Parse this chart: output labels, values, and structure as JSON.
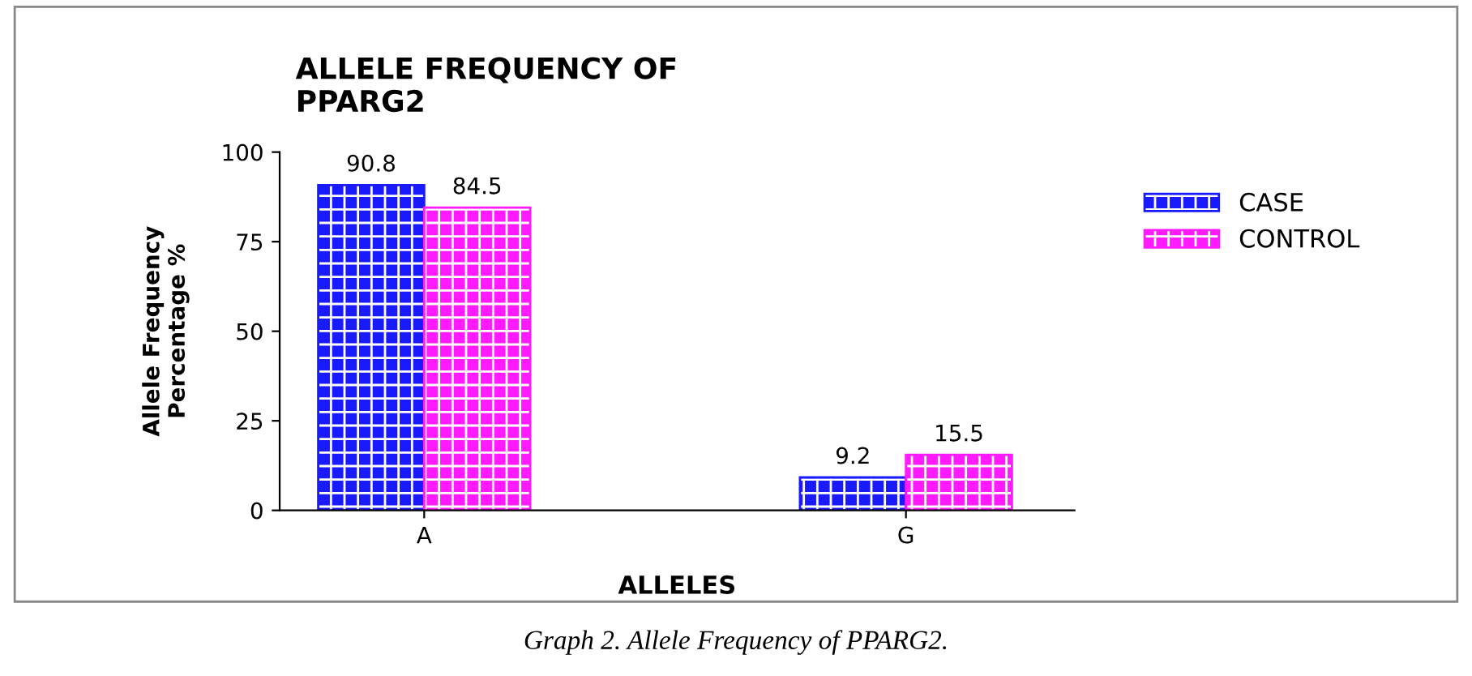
{
  "chart_data": {
    "type": "bar",
    "title": "ALLELE FREQUENCY OF\nPPARG2",
    "xlabel": "ALLELES",
    "ylabel": "Allele Frequency\nPercentage %",
    "categories": [
      "A",
      "G"
    ],
    "series": [
      {
        "name": "CASE",
        "color": "#1a1aff",
        "values": [
          90.8,
          9.2
        ]
      },
      {
        "name": "CONTROL",
        "color": "#ff1aff",
        "values": [
          84.5,
          15.5
        ]
      }
    ],
    "ylim": [
      0,
      100
    ],
    "yticks": [
      0,
      25,
      50,
      75,
      100
    ],
    "grid": false,
    "legend": "right",
    "data_labels": true,
    "annotations": [
      "Graph 2. Allele Frequency of PPARG2."
    ]
  }
}
